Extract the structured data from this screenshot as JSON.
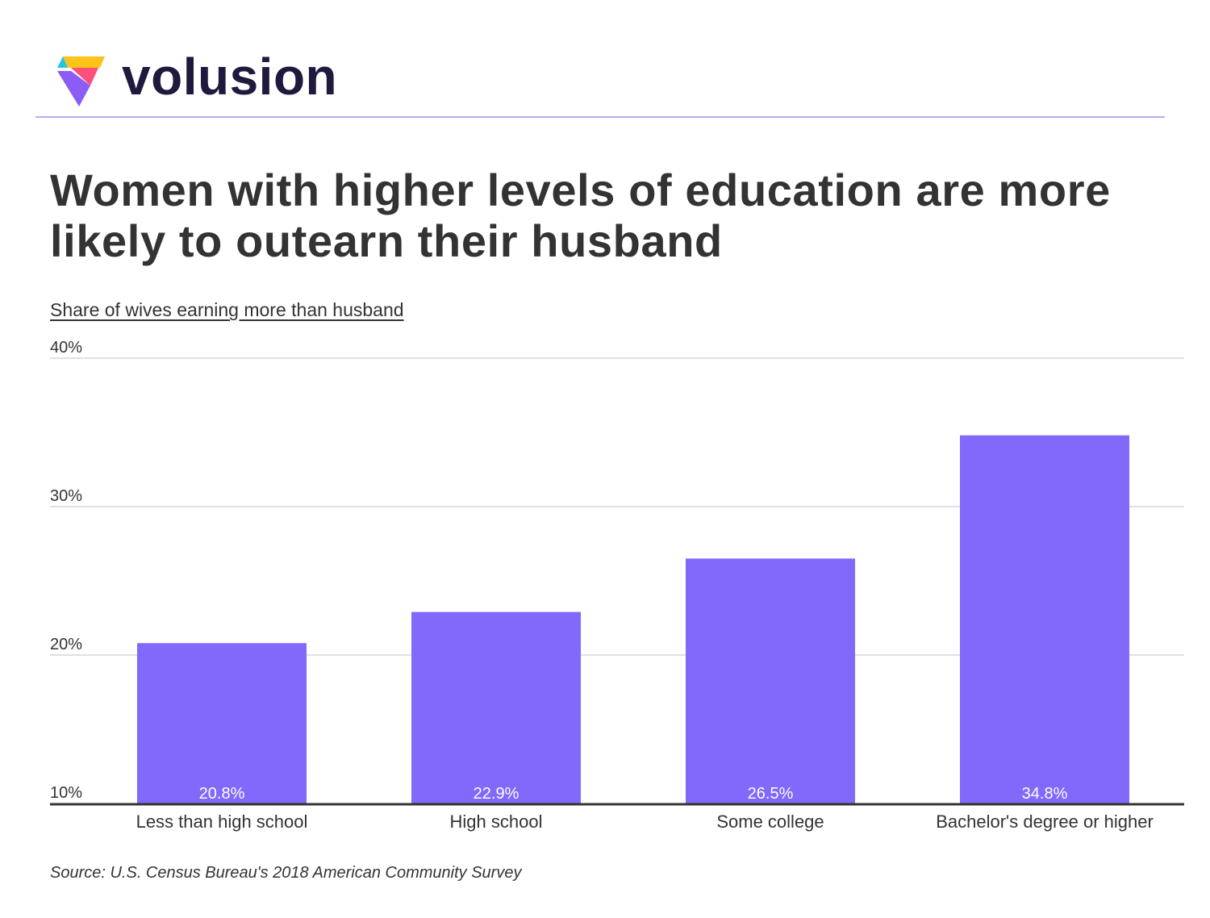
{
  "brand": {
    "name": "volusion",
    "logo_icon": "volusion-logo-icon",
    "colors": {
      "yellow": "#fcc419",
      "cyan": "#22c5e8",
      "pink": "#ff4f7b",
      "purple": "#8b5cf6"
    }
  },
  "colors": {
    "bar": "#8268fb",
    "header_rule": "#b7aef2",
    "grid": "#d6d6d6",
    "baseline": "#333333",
    "text": "#333333"
  },
  "chart_data": {
    "type": "bar",
    "title": "Women with higher levels of education are more likely to outearn their husband",
    "ylabel": "Share of wives earning more than husband",
    "xlabel": "",
    "categories": [
      "Less than high school",
      "High school",
      "Some college",
      "Bachelor's degree or higher"
    ],
    "values": [
      20.8,
      22.9,
      26.5,
      34.8
    ],
    "value_labels": [
      "20.8%",
      "22.9%",
      "26.5%",
      "34.8%"
    ],
    "ylim": [
      10,
      40
    ],
    "yticks": [
      10,
      20,
      30,
      40
    ],
    "ytick_labels": [
      "10%",
      "20%",
      "30%",
      "40%"
    ],
    "grid": true,
    "legend": "none"
  },
  "source": "Source: U.S. Census Bureau's 2018 American Community Survey"
}
